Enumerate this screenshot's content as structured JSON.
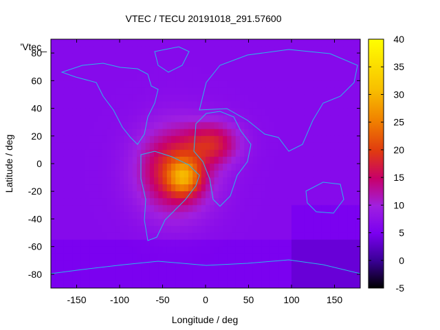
{
  "chart_data": {
    "type": "heatmap",
    "title": "VTEC / TECU 20191018_291.57600",
    "xlabel": "Longitude / deg",
    "ylabel": "Latitude / deg",
    "xlim": [
      -180,
      180
    ],
    "ylim": [
      -90,
      90
    ],
    "x_ticks": [
      "-150",
      "-100",
      "-50",
      "0",
      "50",
      "100",
      "150"
    ],
    "y_ticks": [
      "80",
      "60",
      "40",
      "20",
      "0",
      "-20",
      "-40",
      "-60",
      "-80"
    ],
    "colorbar": {
      "range": [
        -5,
        40
      ],
      "ticks": [
        "40",
        "35",
        "30",
        "25",
        "20",
        "15",
        "10",
        "5",
        "0",
        "-5"
      ],
      "palette": [
        "#000000",
        "#3a0096",
        "#7a00f0",
        "#a020e0",
        "#c8006a",
        "#e03a10",
        "#f08000",
        "#f8c000",
        "#ffff00"
      ]
    },
    "series_label": "'Vtec_",
    "background_value": 6.5,
    "anomaly": {
      "center_lon": -35,
      "center_lat": -5,
      "peak_value": 31,
      "description": "TEC enhancement over South America / South Atlantic"
    },
    "coastline_color": "#2ab8e8"
  }
}
